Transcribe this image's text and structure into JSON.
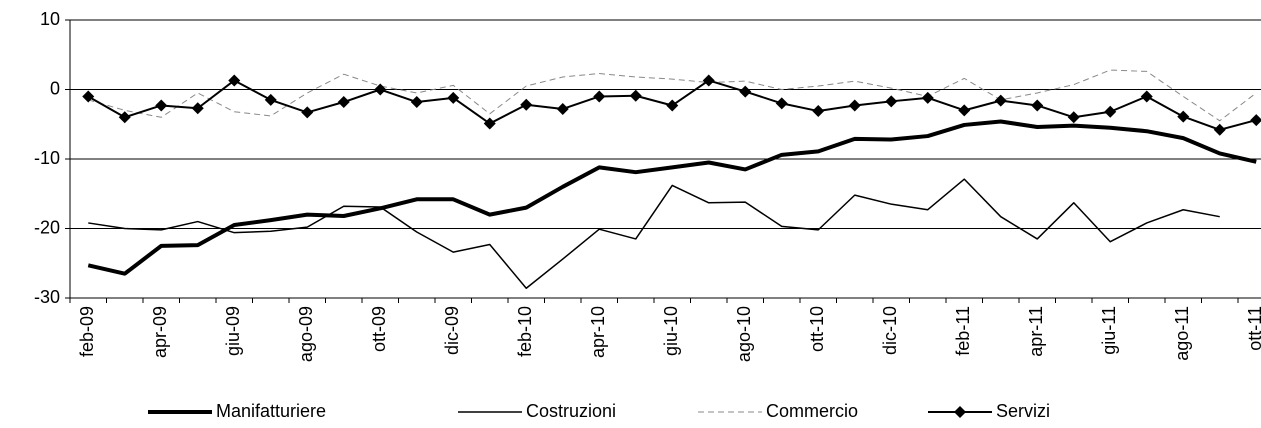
{
  "chart_data": {
    "type": "line",
    "categories": [
      "feb-09",
      null,
      "apr-09",
      null,
      "giu-09",
      null,
      "ago-09",
      null,
      "ott-09",
      null,
      "dic-09",
      null,
      "feb-10",
      null,
      "apr-10",
      null,
      "giu-10",
      null,
      "ago-10",
      null,
      "ott-10",
      null,
      "dic-10",
      null,
      "feb-11",
      null,
      "apr-11",
      null,
      "giu-11",
      null,
      "ago-11",
      null,
      "ott-11"
    ],
    "series": [
      {
        "name": "Manifatturiere",
        "color": "#000000",
        "line_width": 4,
        "dashed": false,
        "marker": null,
        "values": [
          -25.3,
          -26.5,
          -22.5,
          -22.4,
          -19.5,
          -18.8,
          -18,
          -18.2,
          -17.1,
          -15.8,
          -15.8,
          -18,
          -17,
          -14,
          -11.2,
          -11.9,
          -11.2,
          -10.5,
          -11.5,
          -9.4,
          -8.9,
          -7.1,
          -7.2,
          -6.7,
          -5.1,
          -4.6,
          -5.4,
          -5.2,
          -5.5,
          -6,
          -7,
          -9.2,
          -10.4
        ]
      },
      {
        "name": "Costruzioni",
        "color": "#000000",
        "line_width": 1.5,
        "dashed": false,
        "marker": null,
        "values": [
          -19.2,
          -20,
          -20.2,
          -19,
          -20.6,
          -20.4,
          -19.8,
          -16.8,
          -16.9,
          -20.5,
          -23.4,
          -22.3,
          -28.6,
          -24.4,
          -20.1,
          -21.5,
          -13.8,
          -16.3,
          -16.2,
          -19.7,
          -20.2,
          -15.2,
          -16.5,
          -17.3,
          -12.9,
          -18.3,
          -21.5,
          -16.3,
          -21.9,
          -19.2,
          -17.3,
          -18.3,
          null
        ]
      },
      {
        "name": "Commercio",
        "color": "#888888",
        "line_width": 1,
        "dashed": true,
        "marker": null,
        "values": [
          -1.5,
          -3,
          -4,
          -0.5,
          -3.2,
          -3.8,
          -0.5,
          2.2,
          0.5,
          -0.5,
          0.6,
          -3.5,
          0.5,
          1.8,
          2.3,
          1.8,
          1.5,
          1,
          1.2,
          0,
          0.5,
          1.2,
          0.2,
          -1,
          1.6,
          -1.5,
          -0.5,
          0.7,
          2.8,
          2.6,
          -1,
          -4.5,
          -0.5
        ]
      },
      {
        "name": "Servizi",
        "color": "#000000",
        "line_width": 2,
        "dashed": false,
        "marker": "diamond",
        "values": [
          -1,
          -4,
          -2.3,
          -2.7,
          1.3,
          -1.5,
          -3.3,
          -1.8,
          0,
          -1.8,
          -1.2,
          -4.9,
          -2.2,
          -2.8,
          -1,
          -0.9,
          -2.3,
          1.3,
          -0.3,
          -2,
          -3.1,
          -2.3,
          -1.7,
          -1.2,
          -3,
          -1.6,
          -2.3,
          -4,
          -3.2,
          -1,
          -3.9,
          -5.8,
          -4.4
        ]
      }
    ],
    "ylim": [
      -30,
      10
    ],
    "yticks": [
      -30,
      -20,
      -10,
      0,
      10
    ],
    "grid": true,
    "legend": "bottom"
  }
}
